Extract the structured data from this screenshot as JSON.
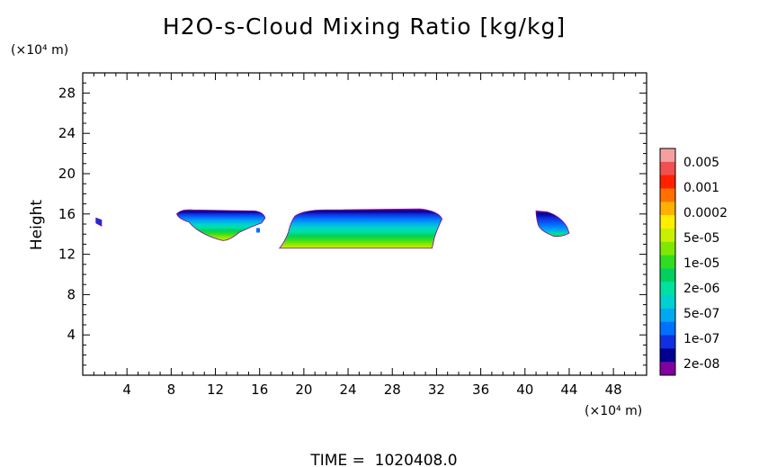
{
  "chart_data": {
    "type": "heatmap",
    "title": "H2O-s-Cloud Mixing Ratio [kg/kg]",
    "ylabel": "Height",
    "y_unit": "(×10⁴ m)",
    "x_unit": "(×10⁴ m)",
    "footer": "TIME =  1020408.0",
    "xlim": [
      0,
      51
    ],
    "ylim": [
      0,
      30
    ],
    "x_ticks": [
      4,
      8,
      12,
      16,
      20,
      24,
      28,
      32,
      36,
      40,
      44,
      48
    ],
    "y_ticks": [
      4,
      8,
      12,
      16,
      20,
      24,
      28
    ],
    "colorbar": {
      "labels": [
        "0.005",
        "0.001",
        "0.0002",
        "5e-05",
        "1e-05",
        "2e-06",
        "5e-07",
        "1e-07",
        "2e-08"
      ],
      "colors": [
        "#f5a0a0",
        "#f05050",
        "#ff2000",
        "#ff7000",
        "#ffb000",
        "#ffee00",
        "#c8f000",
        "#80e800",
        "#30dd20",
        "#00d060",
        "#00e0a0",
        "#00d0d0",
        "#00a8f0",
        "#0070ff",
        "#1030e0",
        "#000090",
        "#8000a0"
      ]
    },
    "cloud_regions": [
      {
        "x": [
          1.2,
          1.7
        ],
        "y": [
          14.8,
          15.6
        ],
        "max_level": "1e-07"
      },
      {
        "x": [
          8.5,
          16.5
        ],
        "y": [
          13.2,
          16.4
        ],
        "max_level": "1e-05"
      },
      {
        "x": [
          17.8,
          32.5
        ],
        "y": [
          12.6,
          16.5
        ],
        "max_level": "1e-05"
      },
      {
        "x": [
          41.0,
          44.0
        ],
        "y": [
          13.7,
          16.3
        ],
        "max_level": "1e-05"
      }
    ]
  }
}
